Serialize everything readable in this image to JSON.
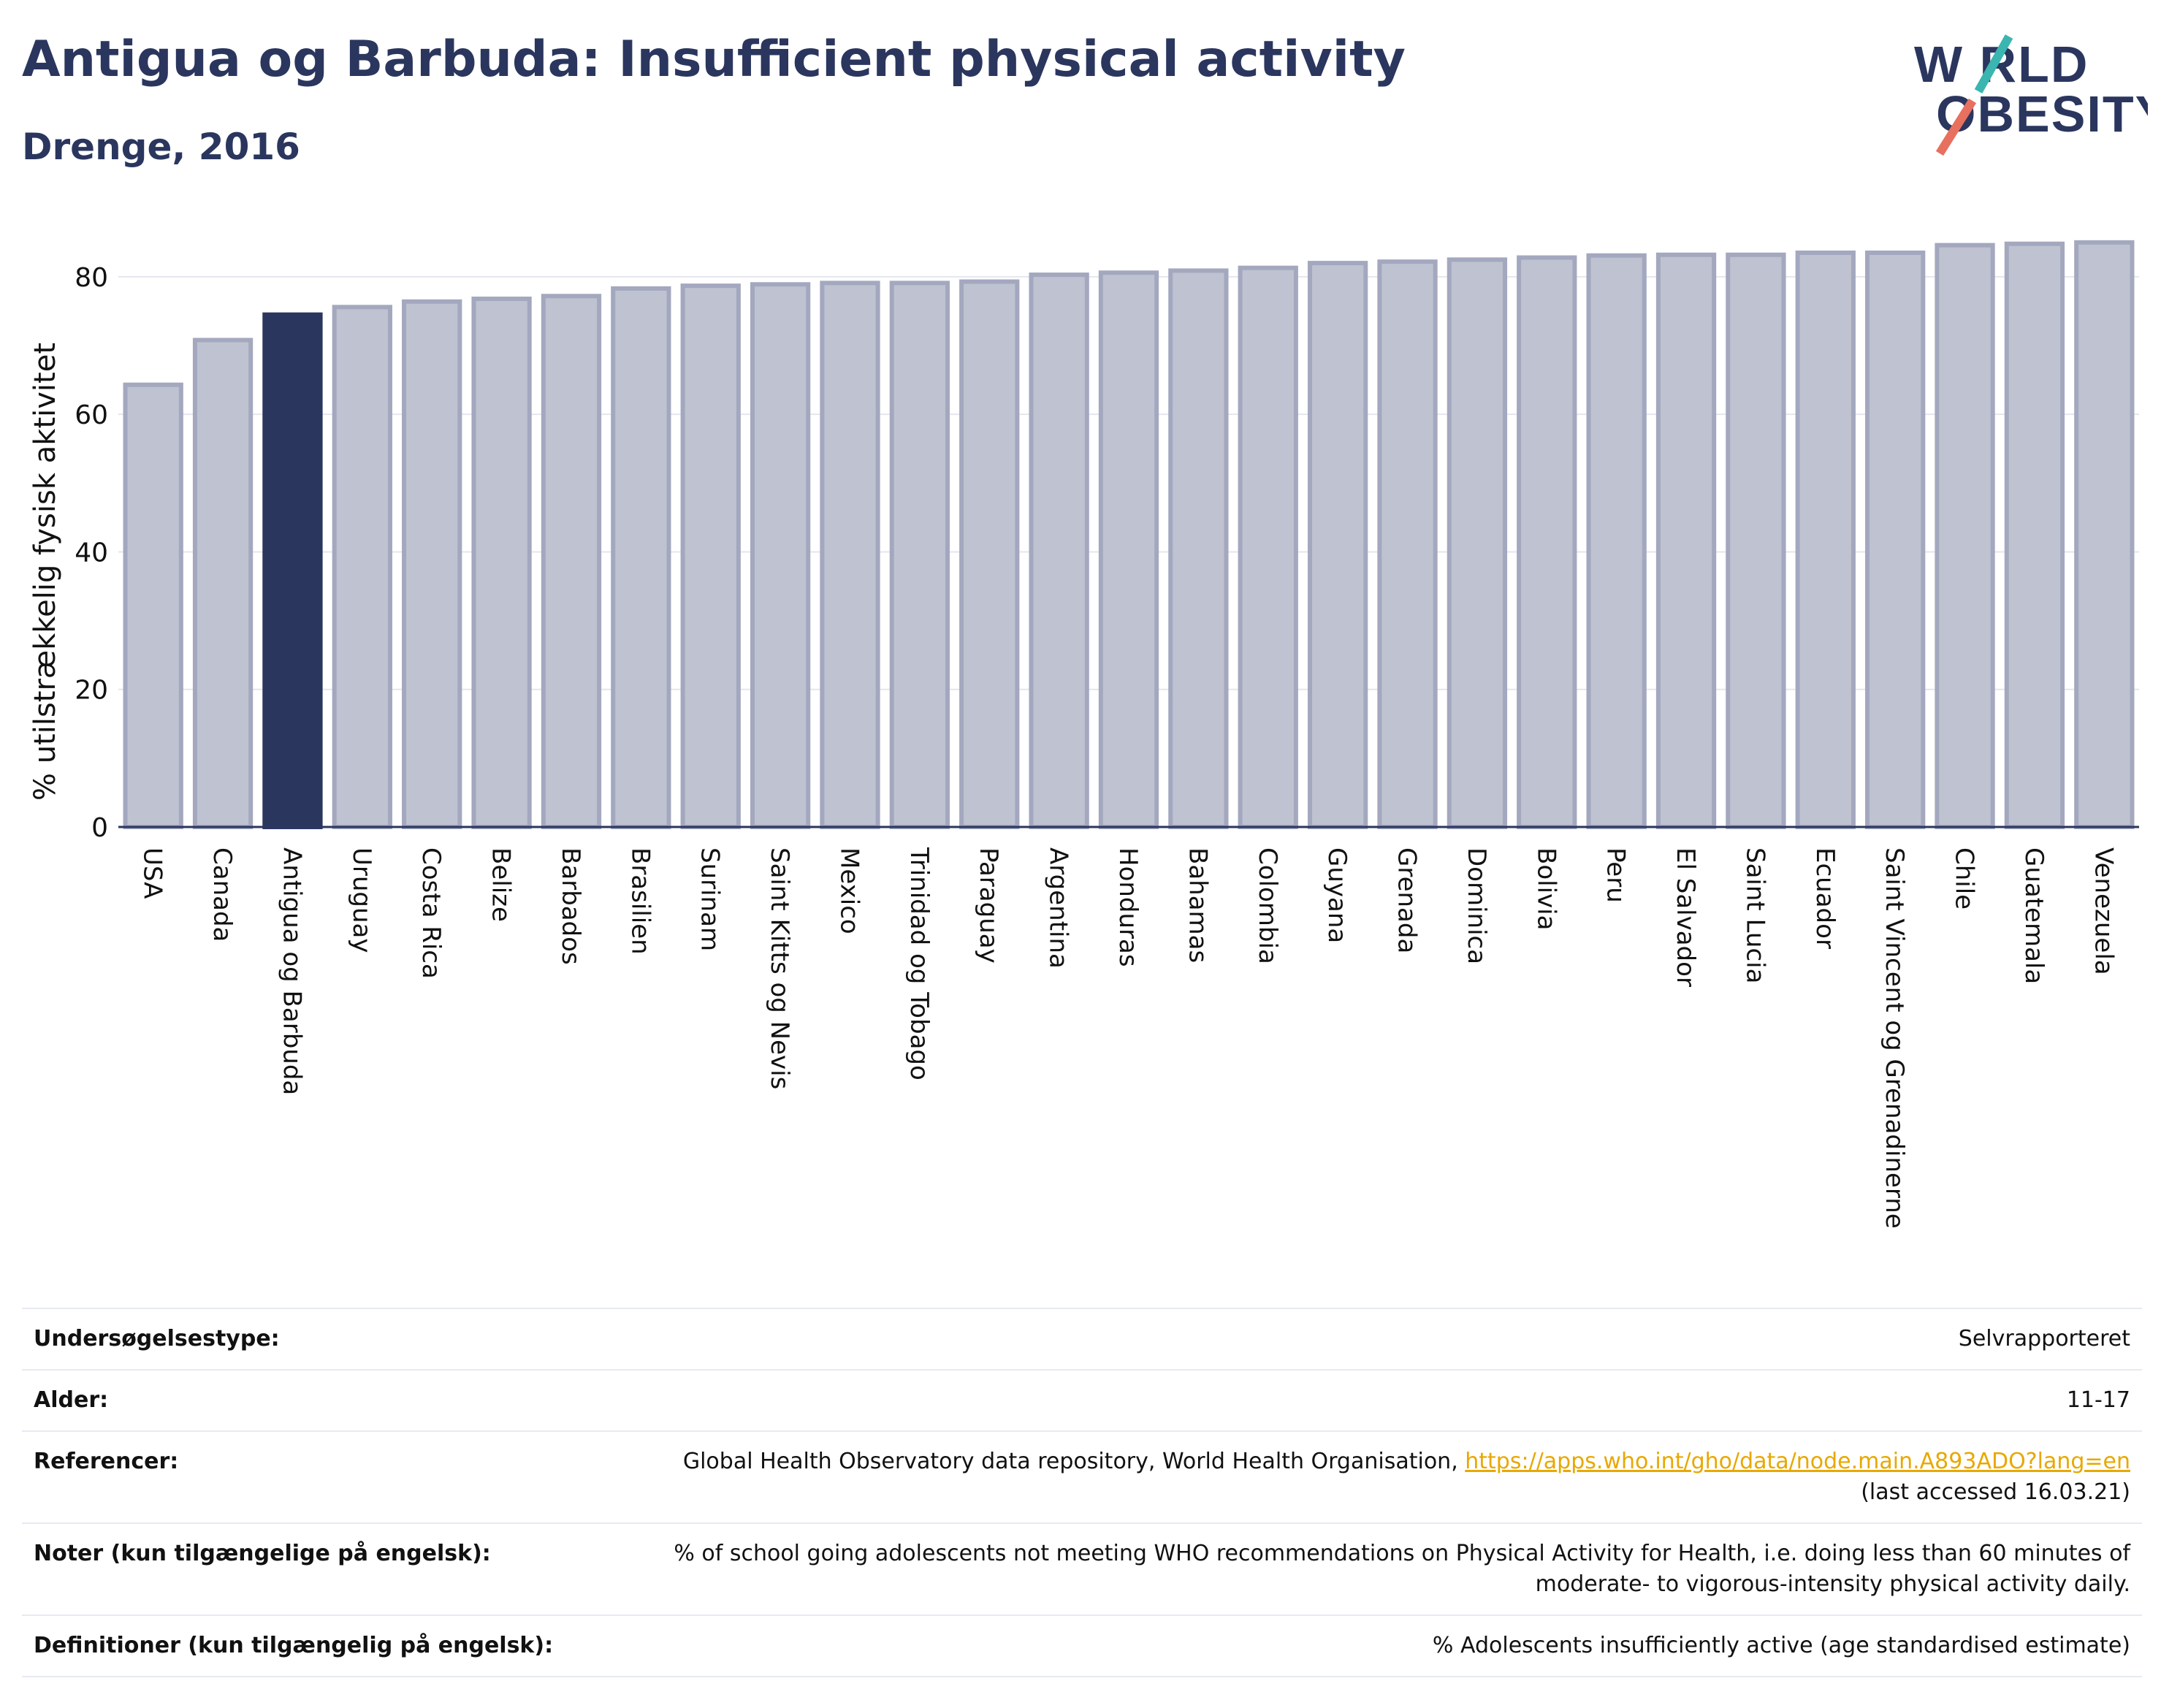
{
  "header": {
    "title": "Antigua og Barbuda: Insufficient physical activity",
    "subtitle": "Drenge, 2016"
  },
  "logo": {
    "line1": "W RLD",
    "line2": "OBESITY",
    "slash_top_color": "#3ab5b0",
    "slash_bottom_color": "#e8705f"
  },
  "colors": {
    "highlight_bar": "#2a365e",
    "other_bar": "#bfc2d0",
    "other_bar_border": "#a3a8bf",
    "text_dark": "#2a365e"
  },
  "chart_data": {
    "type": "bar",
    "ylabel": "% utilstrækkelig fysisk aktivitet",
    "ylim": [
      0,
      87
    ],
    "yticks": [
      0,
      20,
      40,
      60,
      80
    ],
    "grid": true,
    "highlight": "Antigua og Barbuda",
    "categories": [
      "USA",
      "Canada",
      "Antigua og Barbuda",
      "Uruguay",
      "Costa Rica",
      "Belize",
      "Barbados",
      "Brasilien",
      "Surinam",
      "Saint Kitts og Nevis",
      "Mexico",
      "Trinidad og Tobago",
      "Paraguay",
      "Argentina",
      "Honduras",
      "Bahamas",
      "Colombia",
      "Guyana",
      "Grenada",
      "Dominica",
      "Bolivia",
      "Peru",
      "El Salvador",
      "Saint Lucia",
      "Ecuador",
      "Saint Vincent og Grenadinerne",
      "Chile",
      "Guatemala",
      "Venezuela"
    ],
    "values": [
      64.3,
      70.8,
      74.5,
      75.6,
      76.4,
      76.8,
      77.2,
      78.3,
      78.7,
      78.9,
      79.1,
      79.1,
      79.3,
      80.3,
      80.6,
      80.9,
      81.3,
      82.0,
      82.2,
      82.5,
      82.8,
      83.1,
      83.2,
      83.2,
      83.5,
      83.5,
      84.6,
      84.8,
      85.0
    ]
  },
  "info": {
    "rows": [
      {
        "label": "Undersøgelsestype:",
        "value": "Selvrapporteret"
      },
      {
        "label": "Alder:",
        "value": "11-17"
      },
      {
        "label": "Referencer:",
        "value_prefix": "Global Health Observatory data repository, World Health Organisation, ",
        "link": "https://apps.who.int/gho/data/node.main.A893ADO?lang=en",
        "value_suffix": "(last accessed 16.03.21)"
      },
      {
        "label": "Noter (kun tilgængelige på engelsk):",
        "value": "% of school going adolescents not meeting WHO recommendations on Physical Activity for Health, i.e. doing less than 60 minutes of moderate- to vigorous-intensity physical activity daily."
      },
      {
        "label": "Definitioner (kun tilgængelig på engelsk):",
        "value": "% Adolescents insufficiently active (age standardised estimate)"
      }
    ]
  }
}
